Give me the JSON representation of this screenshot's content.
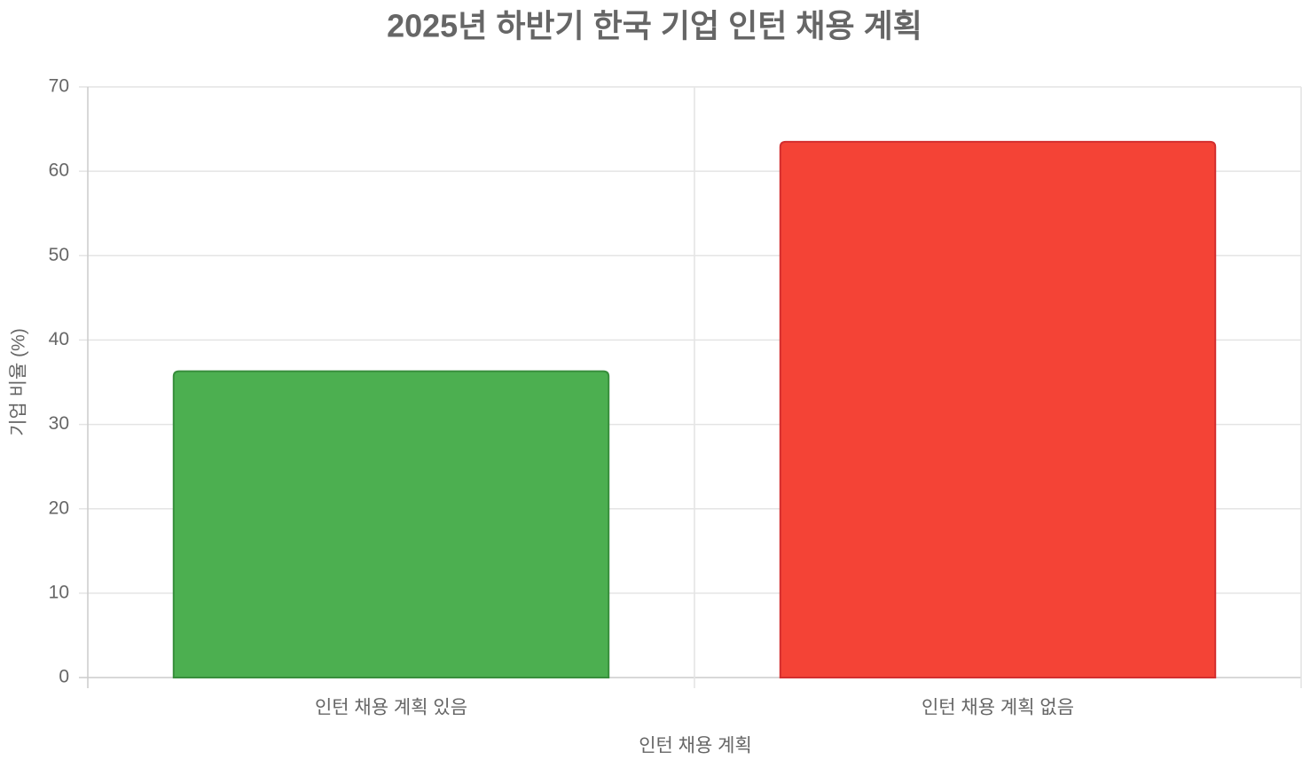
{
  "chart_data": {
    "type": "bar",
    "title": "2025년 하반기 한국 기업 인턴 채용 계획",
    "x_label": "인턴 채용 계획",
    "y_label": "기업 비율 (%)",
    "categories": [
      "인턴 채용 계획 있음",
      "인턴 채용 계획 없음"
    ],
    "values": [
      36.3,
      63.5
    ],
    "colors": [
      "#4caf50",
      "#f44336"
    ],
    "border_colors": [
      "#388e3c",
      "#d32f2f"
    ],
    "ylim": [
      0,
      70
    ],
    "yticks": [
      0,
      10,
      20,
      30,
      40,
      50,
      60,
      70
    ],
    "grid": true
  }
}
